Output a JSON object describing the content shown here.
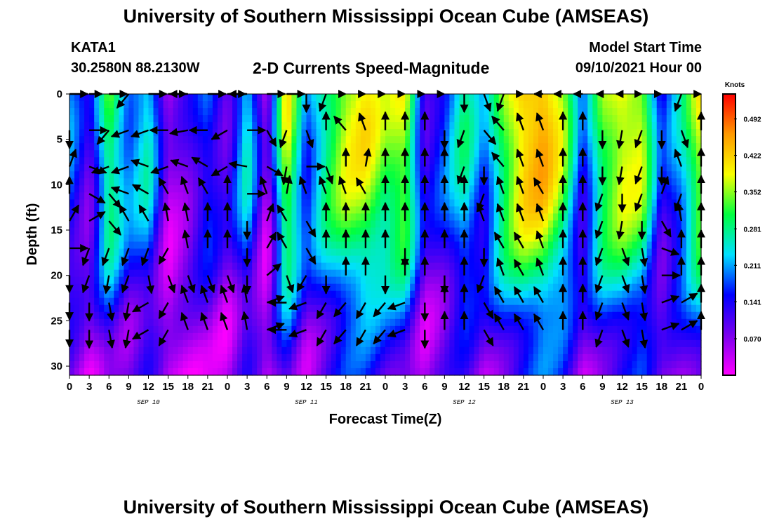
{
  "header": {
    "title": "University of Southern Mississippi Ocean Cube (AMSEAS)",
    "station": "KATA1",
    "coords": "30.2580N  88.2130W",
    "start_label": "Model Start Time",
    "start_value": "09/10/2021 Hour 00"
  },
  "footer": {
    "title": "University of Southern Mississippi Ocean Cube (AMSEAS)"
  },
  "chart_data": {
    "type": "heatmap",
    "title": "2-D Currents Speed-Magnitude",
    "xlabel": "Forecast Time(Z)",
    "ylabel": "Depth (ft)",
    "x_ticks": [
      "0",
      "3",
      "6",
      "9",
      "12",
      "15",
      "18",
      "21",
      "0",
      "3",
      "6",
      "9",
      "12",
      "15",
      "18",
      "21",
      "0",
      "3",
      "6",
      "9",
      "12",
      "15",
      "18",
      "21",
      "0",
      "3",
      "6",
      "9",
      "12",
      "15",
      "18",
      "21",
      "0"
    ],
    "date_labels": [
      {
        "label": "SEP 10",
        "at_index": 4
      },
      {
        "label": "SEP 11",
        "at_index": 12
      },
      {
        "label": "SEP 12",
        "at_index": 20
      },
      {
        "label": "SEP 13",
        "at_index": 28
      }
    ],
    "y_ticks": [
      0,
      5,
      10,
      15,
      20,
      25,
      30
    ],
    "ylim": [
      0,
      31
    ],
    "y_inverted": true,
    "colorbar": {
      "unit": "Knots",
      "ticks": [
        0.492,
        0.422,
        0.352,
        0.281,
        0.211,
        0.141,
        0.07
      ],
      "range": [
        0.0,
        0.54
      ],
      "colors": [
        "#ff00ff",
        "#7a00ee",
        "#0000ff",
        "#00e0ff",
        "#00ff40",
        "#f8ff00",
        "#ff9900",
        "#ff0000"
      ]
    },
    "speed_columns": [
      0.2,
      0.1,
      0.33,
      0.2,
      0.26,
      0.05,
      0.1,
      0.18,
      0.1,
      0.26,
      0.04,
      0.4,
      0.18,
      0.3,
      0.38,
      0.4,
      0.34,
      0.38,
      0.12,
      0.18,
      0.28,
      0.18,
      0.34,
      0.44,
      0.46,
      0.36,
      0.15,
      0.34,
      0.4,
      0.38,
      0.14,
      0.24,
      0.4
    ],
    "speed_depth_profile": [
      1.0,
      1.0,
      0.98,
      0.95,
      0.9,
      0.82,
      0.72,
      0.6,
      0.48,
      0.4,
      0.35
    ],
    "vector_rows_depth_ft": [
      0,
      4,
      8,
      11,
      14,
      17,
      20,
      23,
      26
    ],
    "vector_directions_deg": [
      [
        90,
        45,
        90,
        220,
        90,
        90,
        270,
        90,
        90,
        270,
        90,
        90,
        180,
        200,
        0,
        0,
        0,
        0,
        0,
        0,
        180,
        160,
        200,
        0,
        330,
        330,
        330,
        340,
        340,
        0,
        0,
        200,
        0
      ],
      [
        180,
        90,
        220,
        250,
        250,
        270,
        260,
        270,
        240,
        90,
        150,
        200,
        160,
        0,
        320,
        340,
        0,
        0,
        0,
        180,
        200,
        140,
        320,
        340,
        340,
        0,
        0,
        180,
        190,
        200,
        180,
        160,
        0
      ],
      [
        20,
        110,
        250,
        250,
        290,
        250,
        290,
        300,
        240,
        280,
        120,
        190,
        90,
        160,
        0,
        10,
        0,
        0,
        0,
        0,
        200,
        180,
        320,
        340,
        340,
        0,
        0,
        180,
        190,
        200,
        180,
        340,
        0
      ],
      [
        340,
        120,
        140,
        290,
        300,
        330,
        340,
        330,
        0,
        90,
        340,
        10,
        340,
        340,
        340,
        330,
        0,
        0,
        0,
        0,
        0,
        200,
        340,
        340,
        330,
        0,
        0,
        200,
        180,
        200,
        20,
        200,
        0
      ],
      [
        30,
        60,
        140,
        330,
        330,
        350,
        350,
        0,
        0,
        180,
        20,
        330,
        150,
        0,
        0,
        0,
        0,
        0,
        0,
        0,
        0,
        340,
        340,
        340,
        340,
        0,
        0,
        200,
        190,
        180,
        150,
        350,
        0
      ],
      [
        90,
        200,
        200,
        200,
        200,
        210,
        350,
        0,
        0,
        180,
        30,
        330,
        150,
        0,
        0,
        0,
        0,
        180,
        0,
        0,
        0,
        180,
        330,
        330,
        340,
        0,
        0,
        200,
        160,
        170,
        110,
        0,
        0
      ],
      [
        200,
        200,
        190,
        200,
        170,
        160,
        160,
        160,
        160,
        180,
        50,
        160,
        210,
        180,
        0,
        0,
        180,
        0,
        0,
        180,
        0,
        200,
        340,
        330,
        340,
        0,
        0,
        200,
        160,
        170,
        90,
        0,
        0
      ],
      [
        200,
        180,
        170,
        190,
        240,
        210,
        340,
        340,
        340,
        350,
        70,
        270,
        250,
        210,
        220,
        210,
        220,
        250,
        180,
        0,
        0,
        150,
        330,
        330,
        330,
        0,
        0,
        200,
        160,
        170,
        70,
        60,
        0
      ],
      [
        200,
        180,
        170,
        190,
        240,
        210,
        340,
        340,
        340,
        350,
        70,
        270,
        250,
        210,
        220,
        210,
        220,
        250,
        180,
        0,
        0,
        150,
        330,
        330,
        330,
        0,
        0,
        200,
        160,
        170,
        70,
        60,
        0
      ]
    ]
  }
}
